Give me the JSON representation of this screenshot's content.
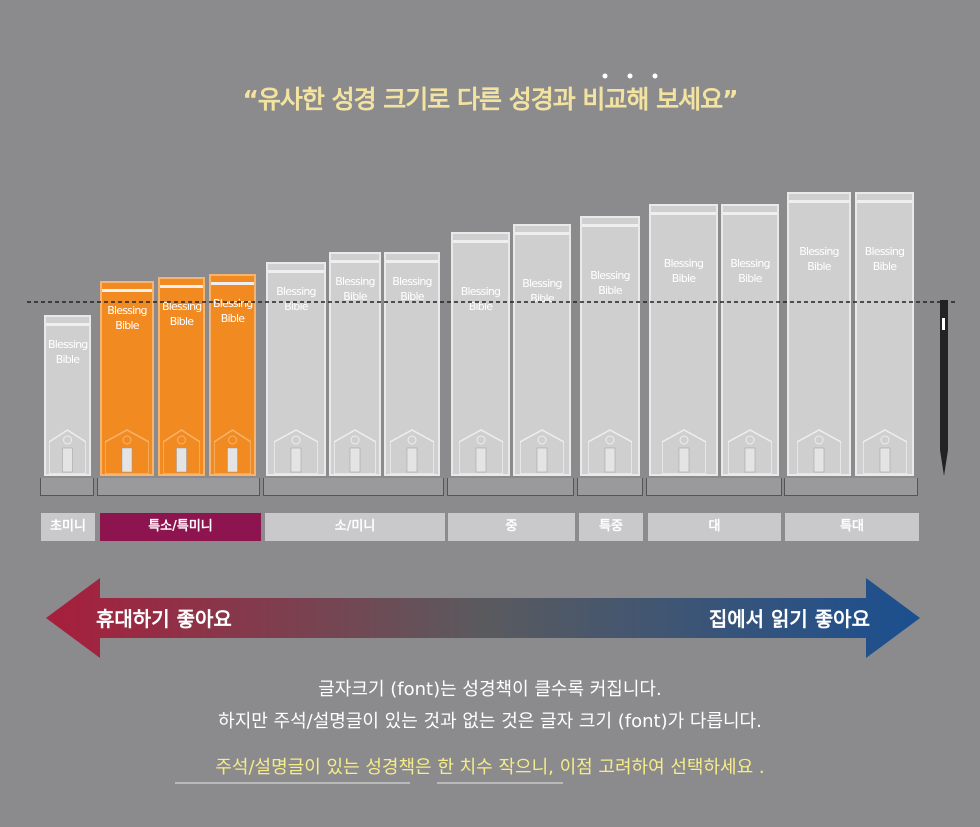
{
  "title": "“유사한 성경 크기로 다른 성경과 비교해 보세요”",
  "books": [
    {
      "label": "Blessing Bible",
      "highlight": false
    },
    {
      "label": "Blessing Bible",
      "highlight": true
    },
    {
      "label": "Blessing Bible",
      "highlight": true
    },
    {
      "label": "Blessing Bible",
      "highlight": true
    },
    {
      "label": "Blessing Bible",
      "highlight": false
    },
    {
      "label": "Blessing Bible",
      "highlight": false
    },
    {
      "label": "Blessing Bible",
      "highlight": false
    },
    {
      "label": "Blessing Bible",
      "highlight": false
    },
    {
      "label": "Blessing Bible",
      "highlight": false
    },
    {
      "label": "Blessing Bible",
      "highlight": false
    },
    {
      "label": "Blessing Bible",
      "highlight": false
    },
    {
      "label": "Blessing Bible",
      "highlight": false
    },
    {
      "label": "Blessing Bible",
      "highlight": false
    },
    {
      "label": "Blessing Bible",
      "highlight": false
    }
  ],
  "sizes": [
    {
      "label": "초미니",
      "highlight": false
    },
    {
      "label": "특소/특미니",
      "highlight": true
    },
    {
      "label": "소/미니",
      "highlight": false
    },
    {
      "label": "중",
      "highlight": false
    },
    {
      "label": "특중",
      "highlight": false
    },
    {
      "label": "대",
      "highlight": false
    },
    {
      "label": "특대",
      "highlight": false
    }
  ],
  "arrow": {
    "left": "휴대하기 좋아요",
    "right": "집에서 읽기 좋아요"
  },
  "notes": [
    "글자크기 (font)는 성경책이 클수록 커집니다.",
    "하지만 주석/설명글이 있는 것과 없는 것은 글자 크기 (font)가 다릅니다."
  ],
  "tip": "주석/설명글이 있는 성경책은 한 치수 작으니, 이점 고려하여 선택하세요 ."
}
